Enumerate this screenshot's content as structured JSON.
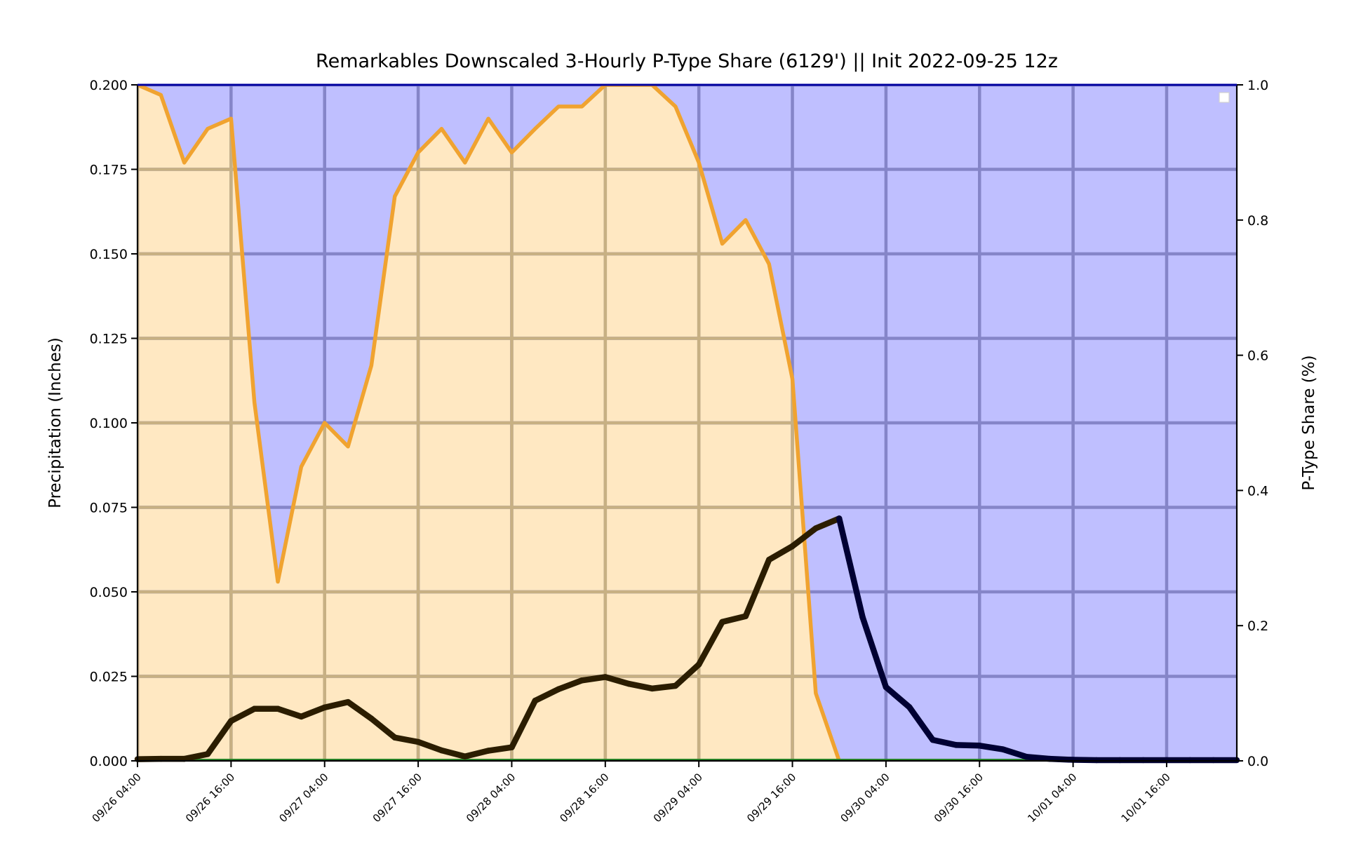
{
  "chart_data": {
    "type": "area",
    "title": "Remarkables Downscaled 3-Hourly P-Type Share (6129') || Init 2022-09-25 12z",
    "ylabel": "Precipitation (Inches)",
    "y2label": "P-Type Share (%)",
    "ylim": [
      0,
      0.2
    ],
    "y2lim": [
      0,
      1.0
    ],
    "yticks": [
      "0.000",
      "0.025",
      "0.050",
      "0.075",
      "0.100",
      "0.125",
      "0.150",
      "0.175",
      "0.200"
    ],
    "y2ticks": [
      "0.0",
      "0.2",
      "0.4",
      "0.6",
      "0.8",
      "1.0"
    ],
    "xticks": [
      "09/26 04:00",
      "09/26 16:00",
      "09/27 04:00",
      "09/27 16:00",
      "09/28 04:00",
      "09/28 16:00",
      "09/29 04:00",
      "09/29 16:00",
      "09/30 04:00",
      "09/30 16:00",
      "10/01 04:00",
      "10/01 16:00"
    ],
    "x_start": "09/26 04:00",
    "x_step_hours": 3,
    "grid": true,
    "legend": "top-right, empty",
    "snow_share": [
      1.0,
      0.985,
      0.885,
      0.935,
      0.95,
      0.53,
      0.265,
      0.435,
      0.5,
      0.465,
      0.585,
      0.835,
      0.9,
      0.935,
      0.885,
      0.95,
      0.9,
      0.935,
      0.968,
      0.968,
      1.0,
      1.0,
      1.0,
      0.968,
      0.885,
      0.765,
      0.8,
      0.735,
      0.565,
      0.1,
      0.0,
      0.0,
      0.0,
      0.0,
      0.0,
      0.0,
      0.0,
      0.0,
      0.0,
      0.0,
      0.0,
      0.0,
      0.0,
      0.0,
      0.0,
      0.0,
      0.0,
      0.0
    ],
    "precip": [
      0.0005,
      0.0006,
      0.0006,
      0.002,
      0.0118,
      0.0154,
      0.0154,
      0.0131,
      0.0158,
      0.0174,
      0.0125,
      0.0069,
      0.0056,
      0.0031,
      0.0013,
      0.003,
      0.004,
      0.0178,
      0.0212,
      0.0238,
      0.0248,
      0.0228,
      0.0214,
      0.0222,
      0.0285,
      0.0411,
      0.0428,
      0.0595,
      0.0635,
      0.0688,
      0.0717,
      0.0425,
      0.0218,
      0.0159,
      0.0062,
      0.0047,
      0.0045,
      0.0034,
      0.0012,
      0.0006,
      0.0003,
      0.0002,
      0.0002,
      0.0002,
      0.0002,
      0.0002,
      0.0002,
      0.0002
    ],
    "colors": {
      "snow_fill": "#ffe8c2",
      "snow_line": "#f0a330",
      "rain_fill": "#bfbfff",
      "grid_snow": "#c7b083",
      "grid_rain": "#8585c8",
      "precip_snow_line": "#2b1d00",
      "precip_rain_line": "#000033",
      "baseline": "#2a8a2a"
    }
  }
}
